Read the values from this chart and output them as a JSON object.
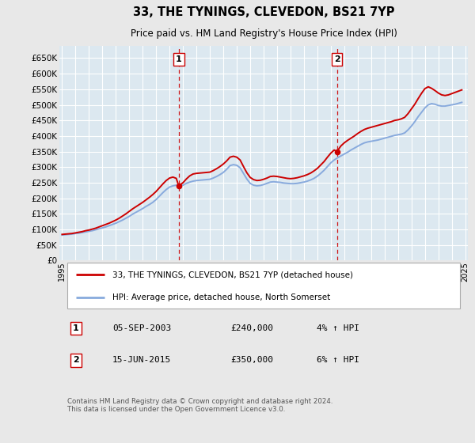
{
  "title": "33, THE TYNINGS, CLEVEDON, BS21 7YP",
  "subtitle": "Price paid vs. HM Land Registry's House Price Index (HPI)",
  "ytick_values": [
    0,
    50000,
    100000,
    150000,
    200000,
    250000,
    300000,
    350000,
    400000,
    450000,
    500000,
    550000,
    600000,
    650000
  ],
  "ylim": [
    0,
    690000
  ],
  "xlim_start": 1994.8,
  "xlim_end": 2025.2,
  "purchase1_year": 2003.68,
  "purchase1_price": 240000,
  "purchase1_label": "1",
  "purchase2_year": 2015.45,
  "purchase2_price": 350000,
  "purchase2_label": "2",
  "line_color_price_paid": "#cc0000",
  "line_color_hpi": "#88aadd",
  "dashed_vline_color": "#cc0000",
  "background_color": "#e8e8e8",
  "plot_bg_color": "#dce8f0",
  "grid_color": "#ffffff",
  "legend_entry1": "33, THE TYNINGS, CLEVEDON, BS21 7YP (detached house)",
  "legend_entry2": "HPI: Average price, detached house, North Somerset",
  "table_row1": [
    "1",
    "05-SEP-2003",
    "£240,000",
    "4% ↑ HPI"
  ],
  "table_row2": [
    "2",
    "15-JUN-2015",
    "£350,000",
    "6% ↑ HPI"
  ],
  "footer": "Contains HM Land Registry data © Crown copyright and database right 2024.\nThis data is licensed under the Open Government Licence v3.0.",
  "hpi_years": [
    1995.0,
    1995.25,
    1995.5,
    1995.75,
    1996.0,
    1996.25,
    1996.5,
    1996.75,
    1997.0,
    1997.25,
    1997.5,
    1997.75,
    1998.0,
    1998.25,
    1998.5,
    1998.75,
    1999.0,
    1999.25,
    1999.5,
    1999.75,
    2000.0,
    2000.25,
    2000.5,
    2000.75,
    2001.0,
    2001.25,
    2001.5,
    2001.75,
    2002.0,
    2002.25,
    2002.5,
    2002.75,
    2003.0,
    2003.25,
    2003.5,
    2003.75,
    2004.0,
    2004.25,
    2004.5,
    2004.75,
    2005.0,
    2005.25,
    2005.5,
    2005.75,
    2006.0,
    2006.25,
    2006.5,
    2006.75,
    2007.0,
    2007.25,
    2007.5,
    2007.75,
    2008.0,
    2008.25,
    2008.5,
    2008.75,
    2009.0,
    2009.25,
    2009.5,
    2009.75,
    2010.0,
    2010.25,
    2010.5,
    2010.75,
    2011.0,
    2011.25,
    2011.5,
    2011.75,
    2012.0,
    2012.25,
    2012.5,
    2012.75,
    2013.0,
    2013.25,
    2013.5,
    2013.75,
    2014.0,
    2014.25,
    2014.5,
    2014.75,
    2015.0,
    2015.25,
    2015.5,
    2015.75,
    2016.0,
    2016.25,
    2016.5,
    2016.75,
    2017.0,
    2017.25,
    2017.5,
    2017.75,
    2018.0,
    2018.25,
    2018.5,
    2018.75,
    2019.0,
    2019.25,
    2019.5,
    2019.75,
    2020.0,
    2020.25,
    2020.5,
    2020.75,
    2021.0,
    2021.25,
    2021.5,
    2021.75,
    2022.0,
    2022.25,
    2022.5,
    2022.75,
    2023.0,
    2023.25,
    2023.5,
    2023.75,
    2024.0,
    2024.25,
    2024.5,
    2024.75
  ],
  "hpi_values": [
    82000,
    83000,
    84000,
    85000,
    87000,
    88000,
    90000,
    92000,
    94000,
    96000,
    99000,
    102000,
    105000,
    108000,
    112000,
    116000,
    120000,
    125000,
    130000,
    136000,
    142000,
    149000,
    155000,
    161000,
    167000,
    174000,
    180000,
    187000,
    196000,
    207000,
    218000,
    228000,
    236000,
    240000,
    242000,
    240000,
    242000,
    248000,
    252000,
    255000,
    257000,
    258000,
    259000,
    260000,
    261000,
    265000,
    270000,
    276000,
    283000,
    293000,
    305000,
    308000,
    306000,
    298000,
    280000,
    262000,
    248000,
    242000,
    240000,
    241000,
    244000,
    248000,
    252000,
    253000,
    252000,
    251000,
    249000,
    248000,
    247000,
    247000,
    248000,
    250000,
    252000,
    255000,
    259000,
    264000,
    271000,
    280000,
    290000,
    302000,
    314000,
    323000,
    330000,
    336000,
    342000,
    348000,
    355000,
    361000,
    367000,
    373000,
    378000,
    381000,
    383000,
    385000,
    387000,
    390000,
    393000,
    396000,
    399000,
    402000,
    404000,
    406000,
    410000,
    420000,
    432000,
    446000,
    462000,
    476000,
    490000,
    500000,
    504000,
    502000,
    498000,
    496000,
    496000,
    498000,
    500000,
    502000,
    505000,
    508000
  ],
  "pp_years": [
    1995.0,
    1995.25,
    1995.5,
    1995.75,
    1996.0,
    1996.25,
    1996.5,
    1996.75,
    1997.0,
    1997.25,
    1997.5,
    1997.75,
    1998.0,
    1998.25,
    1998.5,
    1998.75,
    1999.0,
    1999.25,
    1999.5,
    1999.75,
    2000.0,
    2000.25,
    2000.5,
    2000.75,
    2001.0,
    2001.25,
    2001.5,
    2001.75,
    2002.0,
    2002.25,
    2002.5,
    2002.75,
    2003.0,
    2003.25,
    2003.5,
    2003.68,
    2004.0,
    2004.25,
    2004.5,
    2004.75,
    2005.0,
    2005.25,
    2005.5,
    2005.75,
    2006.0,
    2006.25,
    2006.5,
    2006.75,
    2007.0,
    2007.25,
    2007.5,
    2007.75,
    2008.0,
    2008.25,
    2008.5,
    2008.75,
    2009.0,
    2009.25,
    2009.5,
    2009.75,
    2010.0,
    2010.25,
    2010.5,
    2010.75,
    2011.0,
    2011.25,
    2011.5,
    2011.75,
    2012.0,
    2012.25,
    2012.5,
    2012.75,
    2013.0,
    2013.25,
    2013.5,
    2013.75,
    2014.0,
    2014.25,
    2014.5,
    2014.75,
    2015.0,
    2015.25,
    2015.45,
    2015.75,
    2016.0,
    2016.25,
    2016.5,
    2016.75,
    2017.0,
    2017.25,
    2017.5,
    2017.75,
    2018.0,
    2018.25,
    2018.5,
    2018.75,
    2019.0,
    2019.25,
    2019.5,
    2019.75,
    2020.0,
    2020.25,
    2020.5,
    2020.75,
    2021.0,
    2021.25,
    2021.5,
    2021.75,
    2022.0,
    2022.25,
    2022.5,
    2022.75,
    2023.0,
    2023.25,
    2023.5,
    2023.75,
    2024.0,
    2024.25,
    2024.5,
    2024.75
  ],
  "pp_values": [
    84000,
    85000,
    86000,
    87000,
    89000,
    91000,
    93000,
    96000,
    98000,
    101000,
    104000,
    108000,
    112000,
    116000,
    120000,
    125000,
    130000,
    136000,
    143000,
    150000,
    158000,
    166000,
    173000,
    180000,
    187000,
    195000,
    203000,
    212000,
    222000,
    234000,
    246000,
    257000,
    265000,
    268000,
    264000,
    240000,
    250000,
    262000,
    272000,
    278000,
    280000,
    281000,
    282000,
    283000,
    284000,
    289000,
    295000,
    302000,
    310000,
    320000,
    332000,
    335000,
    332000,
    323000,
    302000,
    282000,
    267000,
    260000,
    257000,
    258000,
    261000,
    265000,
    270000,
    271000,
    270000,
    268000,
    266000,
    264000,
    263000,
    264000,
    266000,
    269000,
    272000,
    276000,
    281000,
    288000,
    296000,
    307000,
    318000,
    332000,
    345000,
    355000,
    350000,
    368000,
    378000,
    386000,
    393000,
    400000,
    408000,
    415000,
    421000,
    425000,
    428000,
    431000,
    434000,
    437000,
    440000,
    443000,
    446000,
    450000,
    452000,
    455000,
    460000,
    472000,
    487000,
    502000,
    520000,
    537000,
    552000,
    558000,
    553000,
    546000,
    538000,
    532000,
    530000,
    532000,
    536000,
    540000,
    544000,
    548000
  ]
}
